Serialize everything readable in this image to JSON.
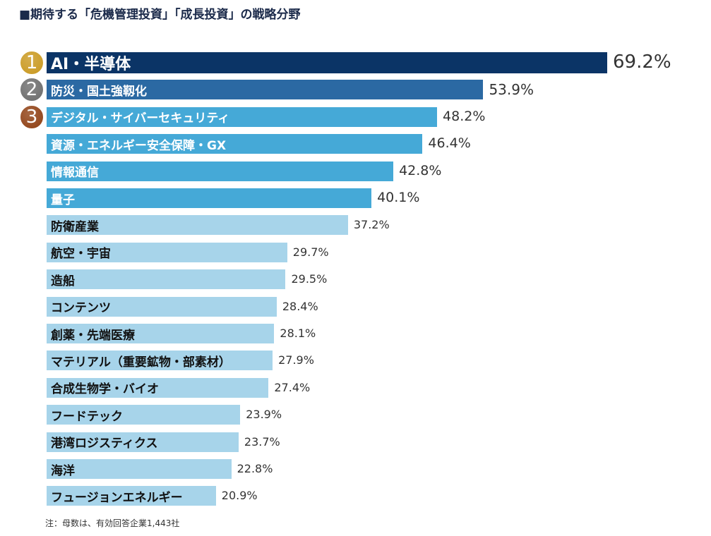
{
  "chart_data": {
    "type": "bar",
    "orientation": "horizontal",
    "title": "■期待する「危機管理投資」「成長投資」の戦略分野",
    "categories": [
      "AI・半導体",
      "防災・国土強靱化",
      "デジタル・サイバーセキュリティ",
      "資源・エネルギー安全保障・GX",
      "情報通信",
      "量子",
      "防衛産業",
      "航空・宇宙",
      "造船",
      "コンテンツ",
      "創薬・先端医療",
      "マテリアル（重要鉱物・部素材）",
      "合成生物学・バイオ",
      "フードテック",
      "港湾ロジスティクス",
      "海洋",
      "フュージョンエネルギー"
    ],
    "values": [
      69.2,
      53.9,
      48.2,
      46.4,
      42.8,
      40.1,
      37.2,
      29.7,
      29.5,
      28.4,
      28.1,
      27.9,
      27.4,
      23.9,
      23.7,
      22.8,
      20.9
    ],
    "value_labels": [
      "69.2%",
      "53.9%",
      "48.2%",
      "46.4%",
      "42.8%",
      "40.1%",
      "37.2%",
      "29.7%",
      "29.5%",
      "28.4%",
      "28.1%",
      "27.9%",
      "27.4%",
      "23.9%",
      "23.7%",
      "22.8%",
      "20.9%"
    ],
    "ranks": [
      "1",
      "2",
      "3"
    ],
    "xlim": [
      0,
      70
    ],
    "grid": false,
    "colors": {
      "rank1": "#0b3466",
      "rank2": "#2b69a3",
      "upper": "#45a9d7",
      "lower": "#a7d4ea",
      "badge1": "#c9981e",
      "badge2": "#6b6b6b",
      "badge3": "#8f3f12"
    },
    "note": "注：母数は、有効回答企業1,443社"
  }
}
